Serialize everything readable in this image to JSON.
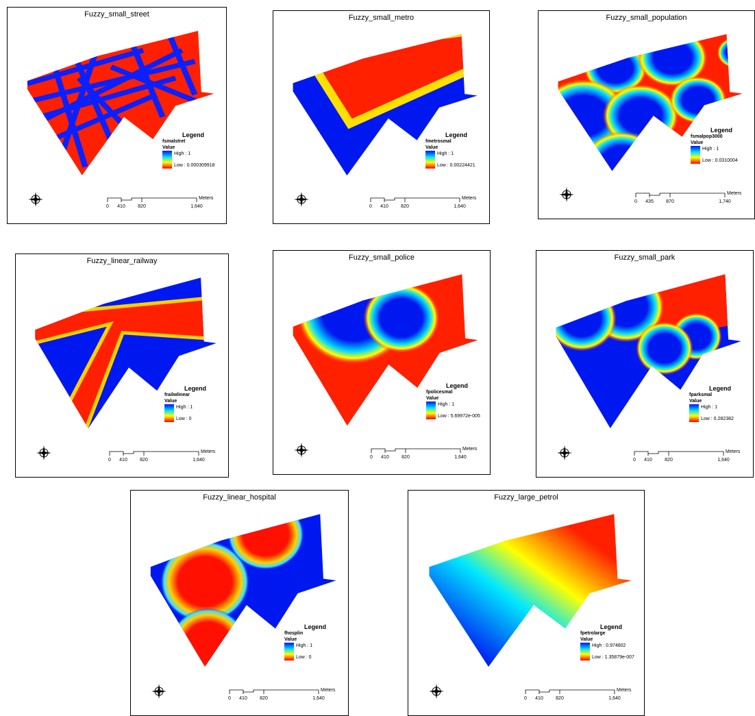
{
  "panels": [
    {
      "title": "Fuzzy_small_street",
      "legend": {
        "heading": "Legend",
        "layer": "fsmalstret",
        "field": "Value",
        "high": "High : 1",
        "low": "Low : 0.000309918"
      },
      "scale": {
        "ticks": [
          "0",
          "410",
          "820",
          "1,640"
        ],
        "unit": "Meters"
      }
    },
    {
      "title": "Fuzzy_small_metro",
      "legend": {
        "heading": "Legend",
        "layer": "fmetrosmal",
        "field": "Value",
        "high": "High : 1",
        "low": "Low : 0.00224421"
      },
      "scale": {
        "ticks": [
          "0",
          "410",
          "820",
          "1,640"
        ],
        "unit": "Meters"
      }
    },
    {
      "title": "Fuzzy_small_population",
      "legend": {
        "heading": "Legend",
        "layer": "fsmalpop3000",
        "field": "Value",
        "high": "High : 1",
        "low": "Low : 0.0310004"
      },
      "scale": {
        "ticks": [
          "0",
          "435",
          "870",
          "1,740"
        ],
        "unit": "Meters"
      }
    },
    {
      "title": "Fuzzy_linear_railway",
      "legend": {
        "heading": "Legend",
        "layer": "frailwlinear",
        "field": "Value",
        "high": "High : 1",
        "low": "Low : 0"
      },
      "scale": {
        "ticks": [
          "0",
          "410",
          "820",
          "1,640"
        ],
        "unit": "Meters"
      }
    },
    {
      "title": "Fuzzy_small_police",
      "legend": {
        "heading": "Legend",
        "layer": "fpolicesmal",
        "field": "Value",
        "high": "High : 1",
        "low": "Low : 5.69972e-005"
      },
      "scale": {
        "ticks": [
          "0",
          "410",
          "820",
          "1,640"
        ],
        "unit": "Meters"
      }
    },
    {
      "title": "Fuzzy_small_park",
      "legend": {
        "heading": "Legend",
        "layer": "fparksmal",
        "field": "Value",
        "high": "High : 1",
        "low": "Low : 0.282382"
      },
      "scale": {
        "ticks": [
          "0",
          "410",
          "820",
          "1,640"
        ],
        "unit": "Meters"
      }
    },
    {
      "title": "Fuzzy_linear_hospital",
      "legend": {
        "heading": "Legend",
        "layer": "fhosplin",
        "field": "Value",
        "high": "High : 1",
        "low": "Low : 0"
      },
      "scale": {
        "ticks": [
          "0",
          "410",
          "820",
          "1,640"
        ],
        "unit": "Meters"
      }
    },
    {
      "title": "Fuzzy_large_petrol",
      "legend": {
        "heading": "Legend",
        "layer": "fpetrolarge",
        "field": "Value",
        "high": "High : 0.974802",
        "low": "Low : 1.35879e-007"
      },
      "scale": {
        "ticks": [
          "0",
          "410",
          "820",
          "1,640"
        ],
        "unit": "Meters"
      }
    }
  ]
}
